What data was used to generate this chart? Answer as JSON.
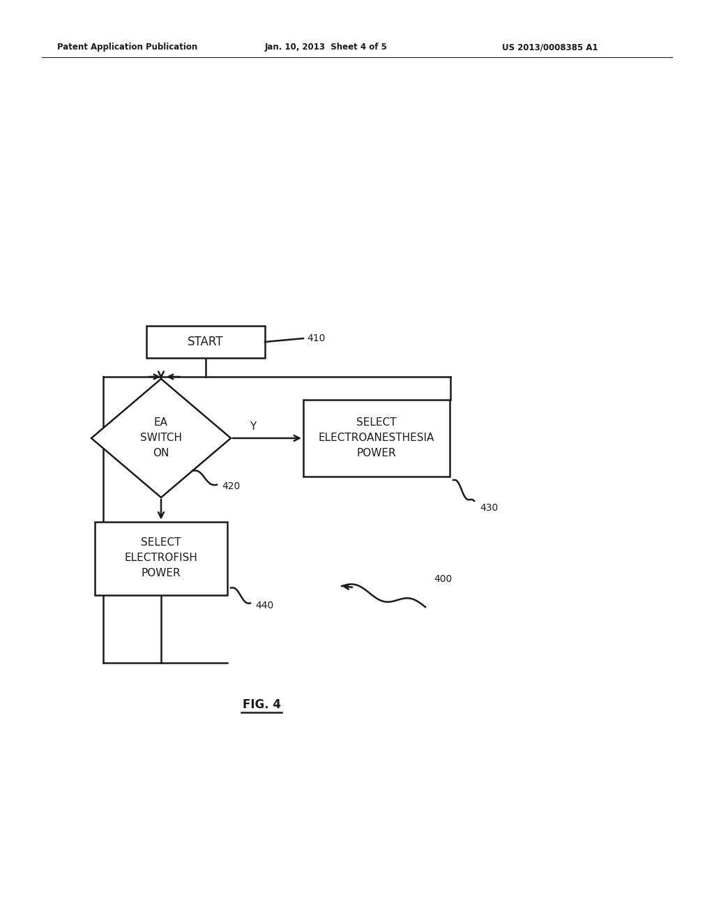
{
  "background_color": "#ffffff",
  "header_left": "Patent Application Publication",
  "header_mid": "Jan. 10, 2013  Sheet 4 of 5",
  "header_right": "US 2013/0008385 A1",
  "figure_label": "FIG. 4",
  "line_color": "#1a1a1a",
  "text_color": "#1a1a1a",
  "start_label": "START",
  "start_ref": "410",
  "diamond_line1": "EA",
  "diamond_line2": "SWITCH",
  "diamond_line3": "ON",
  "diamond_ref": "420",
  "diamond_yes": "Y",
  "rb_line1": "SELECT",
  "rb_line2": "ELECTROANESTHESIA",
  "rb_line3": "POWER",
  "rb_ref": "430",
  "bb_line1": "SELECT",
  "bb_line2": "ELECTROFISH",
  "bb_line3": "POWER",
  "bb_ref": "440",
  "arrow_ref": "400"
}
